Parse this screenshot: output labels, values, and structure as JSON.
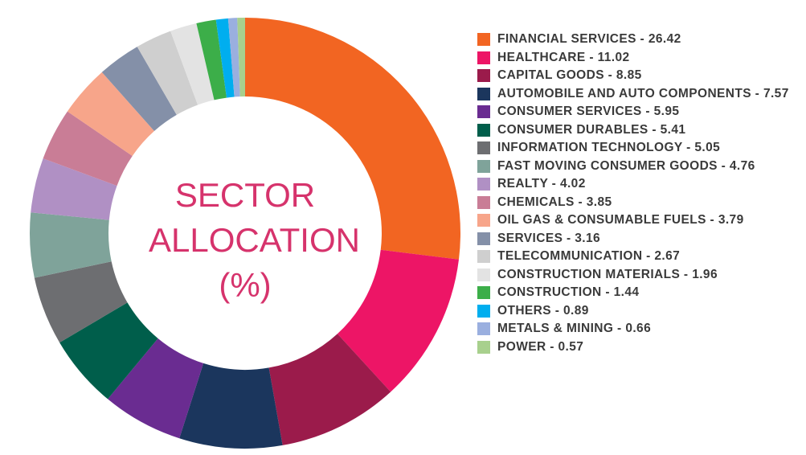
{
  "chart_data": {
    "type": "donut",
    "title": "SECTOR ALLOCATION (%)",
    "categories": [
      "FINANCIAL SERVICES - 26.42",
      "HEALTHCARE - 11.02",
      "CAPITAL GOODS - 8.85",
      "AUTOMOBILE AND AUTO COMPONENTS - 7.57",
      "CONSUMER SERVICES - 5.95",
      "CONSUMER DURABLES - 5.41",
      "INFORMATION TECHNOLOGY - 5.05",
      "FAST MOVING CONSUMER GOODS - 4.76",
      "REALTY - 4.02",
      "CHEMICALS - 3.85",
      "OIL GAS & CONSUMABLE FUELS - 3.79",
      "SERVICES - 3.16",
      "TELECOMMUNICATION - 2.67",
      "CONSTRUCTION MATERIALS - 1.96",
      "CONSTRUCTION - 1.44",
      "OTHERS - 0.89",
      "METALS & MINING - 0.66",
      "POWER - 0.57"
    ],
    "values": [
      26.42,
      11.02,
      8.85,
      7.57,
      5.95,
      5.41,
      5.05,
      4.76,
      4.02,
      3.85,
      3.79,
      3.16,
      2.67,
      1.96,
      1.44,
      0.89,
      0.66,
      0.57
    ],
    "colors": [
      "#f26522",
      "#ed1566",
      "#9b1b4b",
      "#1b365d",
      "#6a2c91",
      "#005e4b",
      "#6d6e71",
      "#7fa39a",
      "#b090c4",
      "#c97d96",
      "#f7a58a",
      "#8490a8",
      "#cfcfcf",
      "#e3e3e3",
      "#3cae49",
      "#00aeef",
      "#9aafdf",
      "#a8d08d"
    ],
    "title_color": "#d6336c"
  }
}
